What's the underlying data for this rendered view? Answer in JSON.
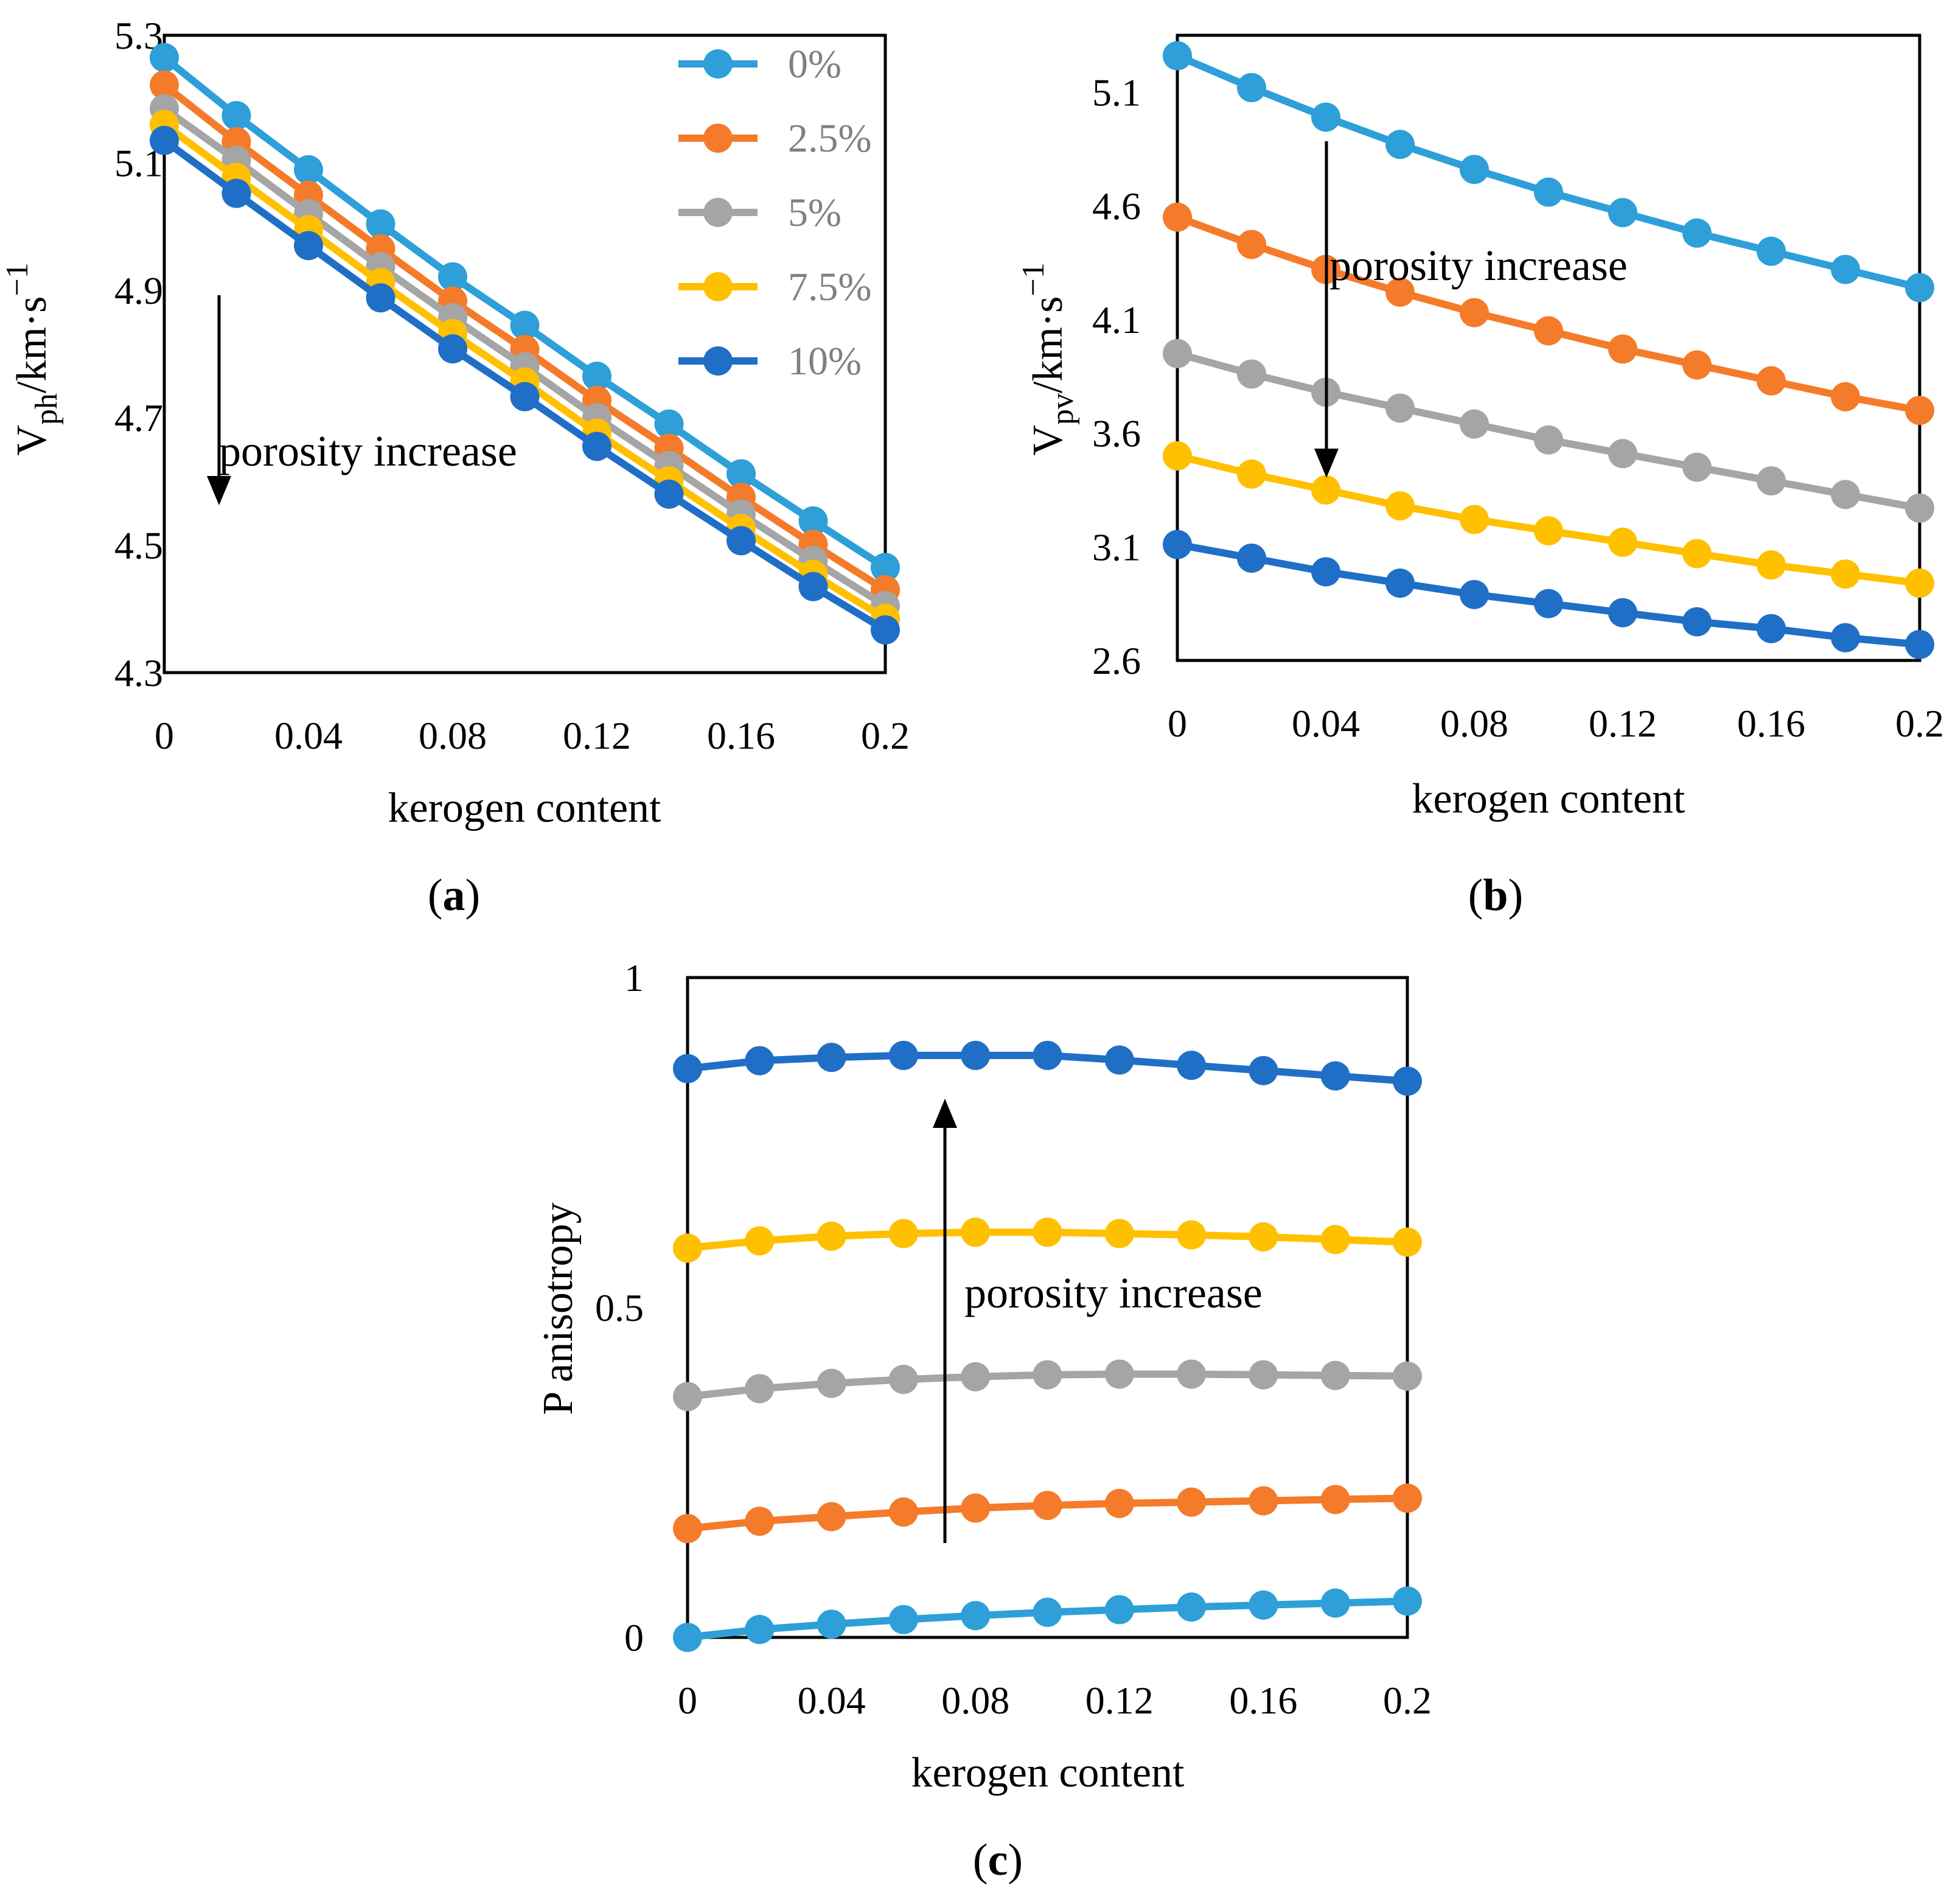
{
  "chart_data": [
    {
      "id": "a",
      "type": "line",
      "panel_label": "a",
      "xlabel": "kerogen content",
      "ylabel": "Vph/km·s−1",
      "ylabel_main": "V",
      "ylabel_sub": "ph",
      "ylabel_rest": "/km·s",
      "ylabel_sup": "−1",
      "xlim": [
        0,
        0.2
      ],
      "ylim": [
        4.3,
        5.3
      ],
      "xticks": [
        "0",
        "0.04",
        "0.08",
        "0.12",
        "0.16",
        "0.2"
      ],
      "yticks": [
        "4.3",
        "4.5",
        "4.7",
        "4.9",
        "5.1",
        "5.3"
      ],
      "legend_position": "top-right",
      "annotation": "porosity increase",
      "arrow": "down",
      "x": [
        0,
        0.02,
        0.04,
        0.06,
        0.08,
        0.1,
        0.12,
        0.14,
        0.16,
        0.18,
        0.2
      ],
      "series": [
        {
          "name": "0%",
          "color": "#2E9FD8",
          "values": [
            5.265,
            5.174,
            5.089,
            5.004,
            4.921,
            4.845,
            4.765,
            4.69,
            4.612,
            4.538,
            4.465
          ]
        },
        {
          "name": "2.5%",
          "color": "#F47B2A",
          "values": [
            5.222,
            5.133,
            5.049,
            4.965,
            4.883,
            4.807,
            4.727,
            4.652,
            4.575,
            4.501,
            4.43
          ]
        },
        {
          "name": "5%",
          "color": "#A5A5A5",
          "values": [
            5.185,
            5.104,
            5.02,
            4.937,
            4.857,
            4.78,
            4.7,
            4.625,
            4.549,
            4.476,
            4.405
          ]
        },
        {
          "name": "7.5%",
          "color": "#FFC000",
          "values": [
            5.16,
            5.077,
            4.995,
            4.912,
            4.832,
            4.756,
            4.676,
            4.601,
            4.526,
            4.454,
            4.385
          ]
        },
        {
          "name": "10%",
          "color": "#1F6FC6",
          "values": [
            5.135,
            5.052,
            4.97,
            4.888,
            4.808,
            4.733,
            4.655,
            4.58,
            4.507,
            4.435,
            4.367
          ]
        }
      ]
    },
    {
      "id": "b",
      "type": "line",
      "panel_label": "b",
      "xlabel": "kerogen content",
      "ylabel": "Vpv/km·s−1",
      "ylabel_main": "V",
      "ylabel_sub": "pv",
      "ylabel_rest": "/km·s",
      "ylabel_sup": "−1",
      "xlim": [
        0,
        0.2
      ],
      "ylim": [
        2.6,
        5.35
      ],
      "xticks": [
        "0",
        "0.04",
        "0.08",
        "0.12",
        "0.16",
        "0.2"
      ],
      "yticks": [
        "2.6",
        "3.1",
        "3.6",
        "4.1",
        "4.6",
        "5.1"
      ],
      "annotation": "porosity increase",
      "arrow": "down",
      "x": [
        0,
        0.02,
        0.04,
        0.06,
        0.08,
        0.1,
        0.12,
        0.14,
        0.16,
        0.18,
        0.2
      ],
      "series": [
        {
          "name": "0%",
          "color": "#2E9FD8",
          "values": [
            5.26,
            5.12,
            4.99,
            4.87,
            4.76,
            4.66,
            4.57,
            4.48,
            4.4,
            4.32,
            4.24
          ]
        },
        {
          "name": "2.5%",
          "color": "#F47B2A",
          "values": [
            4.55,
            4.43,
            4.32,
            4.22,
            4.13,
            4.05,
            3.97,
            3.9,
            3.83,
            3.76,
            3.7
          ]
        },
        {
          "name": "5%",
          "color": "#A5A5A5",
          "values": [
            3.95,
            3.86,
            3.78,
            3.71,
            3.64,
            3.57,
            3.51,
            3.45,
            3.39,
            3.33,
            3.27
          ]
        },
        {
          "name": "7.5%",
          "color": "#FFC000",
          "values": [
            3.5,
            3.42,
            3.35,
            3.28,
            3.22,
            3.17,
            3.12,
            3.07,
            3.02,
            2.98,
            2.94
          ]
        },
        {
          "name": "10%",
          "color": "#1F6FC6",
          "values": [
            3.11,
            3.05,
            2.99,
            2.94,
            2.89,
            2.85,
            2.81,
            2.77,
            2.74,
            2.7,
            2.67
          ]
        }
      ]
    },
    {
      "id": "c",
      "type": "line",
      "panel_label": "c",
      "xlabel": "kerogen content",
      "ylabel": "P anisotropy",
      "xlim": [
        0,
        0.2
      ],
      "ylim": [
        0,
        1
      ],
      "xticks": [
        "0",
        "0.04",
        "0.08",
        "0.12",
        "0.16",
        "0.2"
      ],
      "yticks": [
        "0",
        "0.5",
        "1"
      ],
      "annotation": "porosity increase",
      "arrow": "up",
      "x": [
        0,
        0.02,
        0.04,
        0.06,
        0.08,
        0.1,
        0.12,
        0.14,
        0.16,
        0.18,
        0.2
      ],
      "series": [
        {
          "name": "0%",
          "color": "#2E9FD8",
          "values": [
            0.0,
            0.012,
            0.02,
            0.027,
            0.033,
            0.038,
            0.042,
            0.046,
            0.049,
            0.052,
            0.055
          ]
        },
        {
          "name": "2.5%",
          "color": "#F47B2A",
          "values": [
            0.165,
            0.176,
            0.183,
            0.19,
            0.196,
            0.2,
            0.203,
            0.205,
            0.207,
            0.209,
            0.211
          ]
        },
        {
          "name": "5%",
          "color": "#A5A5A5",
          "values": [
            0.365,
            0.377,
            0.385,
            0.391,
            0.395,
            0.398,
            0.399,
            0.399,
            0.398,
            0.397,
            0.396
          ]
        },
        {
          "name": "7.5%",
          "color": "#FFC000",
          "values": [
            0.59,
            0.601,
            0.608,
            0.612,
            0.614,
            0.614,
            0.612,
            0.61,
            0.607,
            0.603,
            0.599
          ]
        },
        {
          "name": "10%",
          "color": "#1F6FC6",
          "values": [
            0.862,
            0.874,
            0.879,
            0.882,
            0.882,
            0.882,
            0.875,
            0.867,
            0.859,
            0.851,
            0.843
          ]
        }
      ]
    }
  ]
}
